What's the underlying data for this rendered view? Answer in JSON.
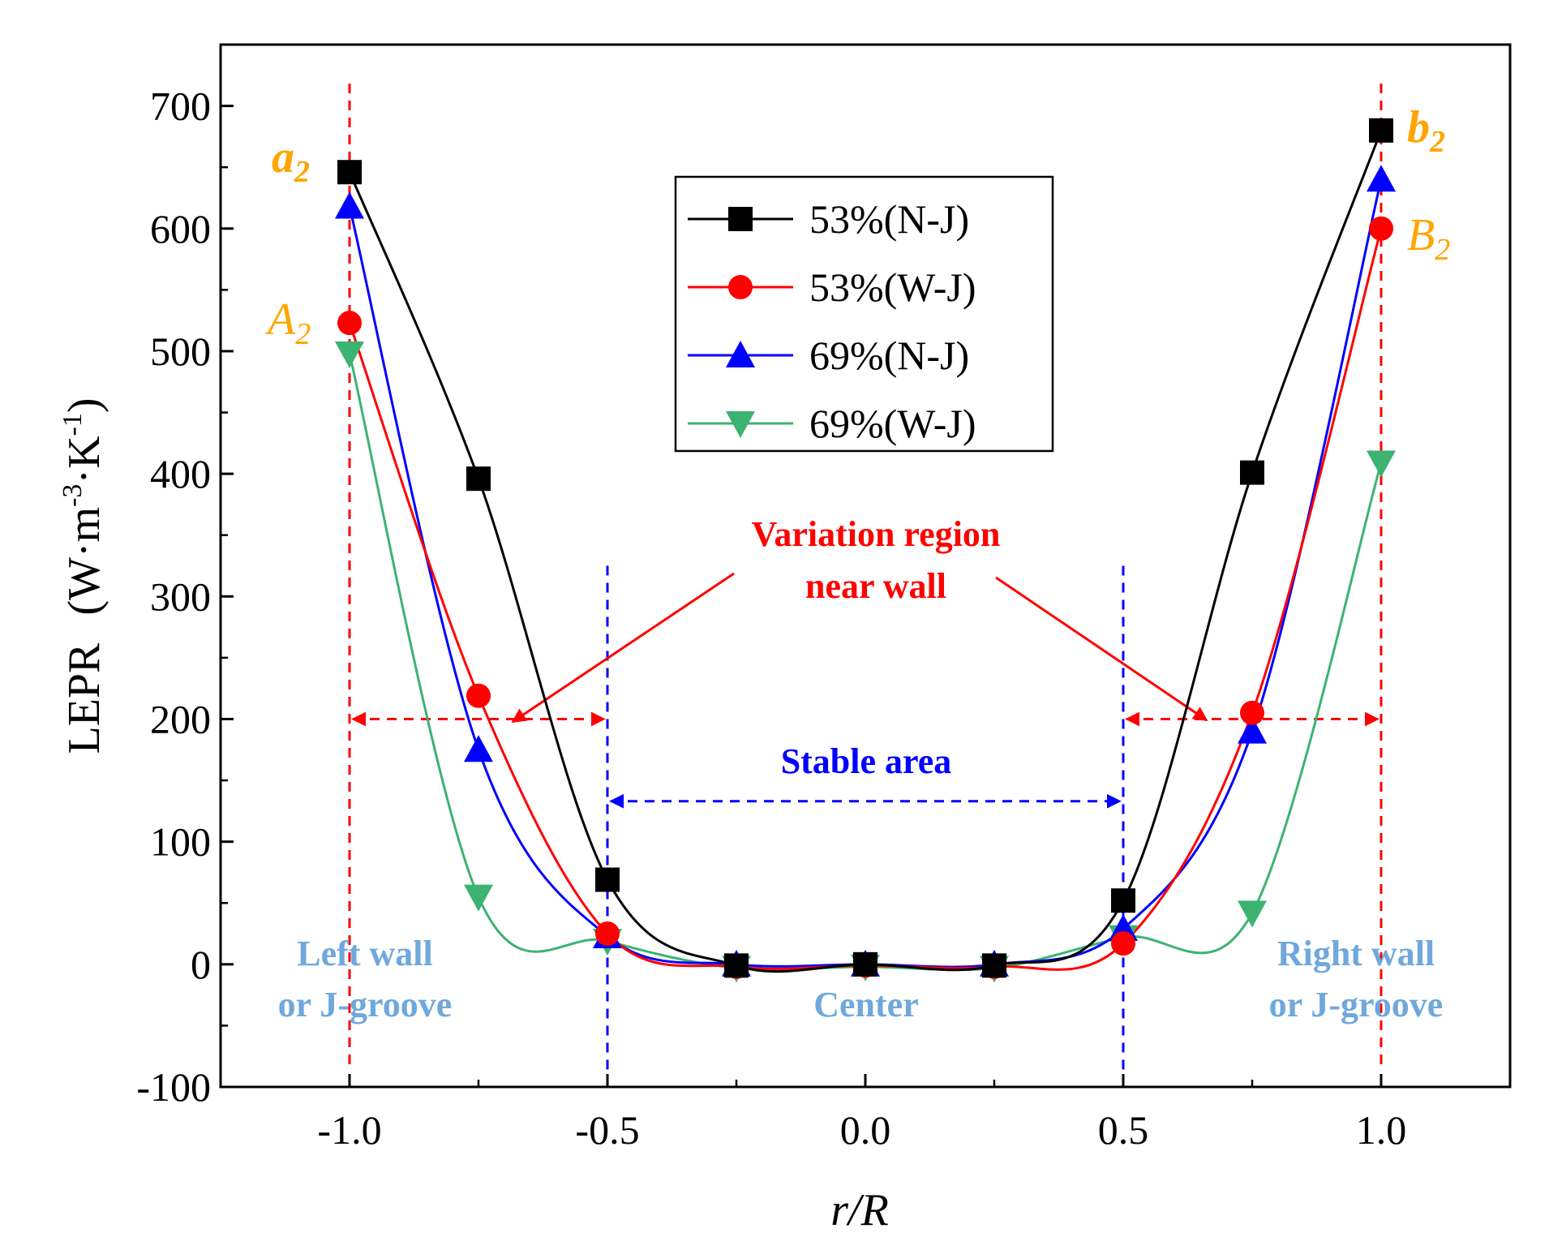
{
  "chart_data": {
    "type": "line",
    "xlabel_italic": "r/R",
    "ylabel_main": "LEPR",
    "ylabel_unit_pre": "(W·m",
    "ylabel_unit_exp1": "-3",
    "ylabel_unit_mid": "·K",
    "ylabel_unit_exp2": "-1",
    "ylabel_unit_post": ")",
    "xlim": [
      -1.25,
      1.25
    ],
    "ylim": [
      -100,
      750
    ],
    "xticks": [
      -1.0,
      -0.5,
      0.0,
      0.5,
      1.0
    ],
    "xtick_labels": [
      "-1.0",
      "-0.5",
      "0.0",
      "0.5",
      "1.0"
    ],
    "yticks": [
      -100,
      0,
      100,
      200,
      300,
      400,
      500,
      600,
      700
    ],
    "ytick_labels": [
      "-100",
      "0",
      "100",
      "200",
      "300",
      "400",
      "500",
      "600",
      "700"
    ],
    "grid": false,
    "legend_position": "top-center",
    "x": [
      -1.0,
      -0.75,
      -0.5,
      -0.25,
      0.0,
      0.25,
      0.5,
      0.75,
      1.0
    ],
    "series": [
      {
        "name": "53%(N-J)",
        "color": "#000000",
        "marker": "square",
        "values": [
          646,
          396,
          69,
          -1,
          0,
          -1,
          52,
          401,
          680
        ]
      },
      {
        "name": "53%(W-J)",
        "color": "#ff0000",
        "marker": "circle",
        "values": [
          523,
          219,
          25,
          -2,
          -1,
          -2,
          17,
          205,
          600
        ]
      },
      {
        "name": "69%(N-J)",
        "color": "#0000ff",
        "marker": "triangle-up",
        "values": [
          618,
          175,
          23,
          0,
          0,
          0,
          29,
          190,
          640
        ]
      },
      {
        "name": "69%(W-J)",
        "color": "#3cb371",
        "marker": "triangle-down",
        "values": [
          498,
          55,
          19,
          -3,
          -2,
          -3,
          22,
          42,
          409
        ]
      }
    ],
    "annotations": {
      "a2": {
        "letter": "a",
        "sub": "2",
        "color": "#ffa500"
      },
      "b2": {
        "letter": "b",
        "sub": "2",
        "color": "#ffa500"
      },
      "A2": {
        "letter": "A",
        "sub": "2",
        "color": "#ffa500"
      },
      "B2": {
        "letter": "B",
        "sub": "2",
        "color": "#ffa500"
      },
      "variation_line1": "Variation region",
      "variation_line2": "near wall",
      "stable": "Stable area",
      "left_wall_line1": "Left wall",
      "left_wall_line2": "or J-groove",
      "center": "Center",
      "right_wall_line1": "Right wall",
      "right_wall_line2": "or J-groove"
    },
    "colors": {
      "variation": "#ff0000",
      "stable": "#0000ff",
      "region_labels": "#6fa8dc"
    }
  }
}
